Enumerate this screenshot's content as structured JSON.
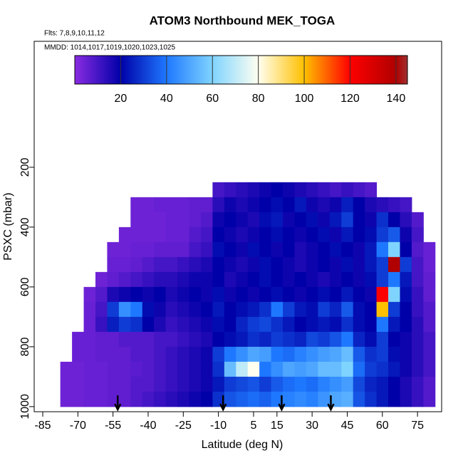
{
  "chart_data": {
    "type": "heatmap",
    "title": "ATOM3 Northbound MEK_TOGA",
    "annotations": [
      "Flts: 7,8,9,10,11,12",
      "MMDD: 1014,1017,1019,1020,1023,1025"
    ],
    "xlabel": "Latitude (deg N)",
    "ylabel": "PSXC (mbar)",
    "xlim": [
      -88.65,
      85.3
    ],
    "xticks": [
      -85,
      -70,
      -55,
      -40,
      -25,
      -10,
      5,
      15,
      30,
      45,
      60,
      75
    ],
    "ylim": [
      1017,
      -221
    ],
    "yticks": [
      200,
      400,
      600,
      800,
      1000
    ],
    "clim": [
      0,
      145
    ],
    "cticks": [
      20,
      40,
      60,
      80,
      100,
      120,
      140
    ],
    "colormap": [
      [
        0,
        "#8a2be2"
      ],
      [
        20,
        "#0000a8"
      ],
      [
        40,
        "#1e78ff"
      ],
      [
        60,
        "#7fd4ff"
      ],
      [
        80,
        "#fffff0"
      ],
      [
        100,
        "#ffc000"
      ],
      [
        120,
        "#ff0000"
      ],
      [
        140,
        "#b00000"
      ],
      [
        145,
        "#a03030"
      ]
    ],
    "arrows": [
      -53,
      -8,
      17,
      38
    ],
    "xbins": [
      -77.5,
      -72.5,
      -67.5,
      -62.5,
      -57.5,
      -52.5,
      -47.5,
      -42.5,
      -37.5,
      -32.5,
      -27.5,
      -22.5,
      -17.5,
      -12.5,
      -7.5,
      -2.5,
      2.5,
      7.5,
      12.5,
      17.5,
      22.5,
      27.5,
      32.5,
      37.5,
      42.5,
      47.5,
      52.5,
      57.5,
      62.5,
      67.5,
      72.5,
      77.5,
      82.5
    ],
    "ybins": [
      250,
      300,
      350,
      400,
      450,
      500,
      550,
      600,
      650,
      700,
      750,
      800,
      850,
      900,
      950,
      1000
    ],
    "z": [
      [
        null,
        null,
        null,
        null,
        null,
        null,
        null,
        null,
        null,
        null,
        null,
        null,
        null,
        10,
        12,
        14,
        16,
        18,
        20,
        18,
        16,
        14,
        12,
        10,
        12,
        10,
        8,
        null,
        null,
        null,
        null,
        null
      ],
      [
        null,
        null,
        null,
        null,
        null,
        null,
        4,
        4,
        5,
        5,
        5,
        6,
        6,
        14,
        18,
        16,
        18,
        20,
        22,
        20,
        24,
        18,
        16,
        18,
        25,
        20,
        16,
        14,
        12,
        10,
        null,
        null
      ],
      [
        null,
        null,
        null,
        null,
        null,
        null,
        4,
        4,
        4,
        5,
        5,
        6,
        8,
        18,
        20,
        18,
        16,
        22,
        24,
        18,
        20,
        22,
        18,
        24,
        30,
        20,
        18,
        28,
        20,
        14,
        8,
        null
      ],
      [
        null,
        null,
        null,
        null,
        null,
        4,
        4,
        4,
        4,
        5,
        5,
        8,
        10,
        20,
        18,
        16,
        18,
        20,
        22,
        20,
        18,
        20,
        22,
        18,
        24,
        20,
        22,
        30,
        35,
        18,
        10,
        null
      ],
      [
        null,
        null,
        null,
        null,
        4,
        4,
        5,
        5,
        6,
        6,
        6,
        10,
        12,
        22,
        20,
        18,
        22,
        20,
        18,
        20,
        16,
        18,
        20,
        22,
        20,
        18,
        24,
        40,
        60,
        20,
        8,
        5
      ],
      [
        null,
        null,
        null,
        null,
        5,
        5,
        6,
        8,
        10,
        10,
        12,
        14,
        16,
        20,
        18,
        16,
        18,
        22,
        20,
        18,
        16,
        18,
        20,
        18,
        22,
        18,
        24,
        30,
        140,
        30,
        10,
        5
      ],
      [
        null,
        null,
        null,
        4,
        6,
        8,
        10,
        12,
        14,
        14,
        16,
        18,
        18,
        20,
        16,
        18,
        20,
        22,
        20,
        18,
        20,
        18,
        16,
        18,
        20,
        18,
        22,
        30,
        40,
        24,
        10,
        6
      ],
      [
        null,
        null,
        4,
        8,
        16,
        18,
        20,
        18,
        20,
        16,
        18,
        20,
        18,
        22,
        18,
        20,
        18,
        20,
        22,
        20,
        18,
        20,
        22,
        20,
        24,
        20,
        18,
        120,
        60,
        22,
        12,
        6
      ],
      [
        null,
        null,
        5,
        10,
        30,
        45,
        40,
        22,
        18,
        14,
        16,
        18,
        20,
        24,
        20,
        22,
        24,
        28,
        40,
        30,
        24,
        22,
        30,
        26,
        35,
        22,
        20,
        100,
        30,
        20,
        12,
        8
      ],
      [
        null,
        null,
        5,
        12,
        25,
        30,
        28,
        20,
        16,
        12,
        14,
        16,
        18,
        22,
        20,
        26,
        30,
        32,
        28,
        24,
        20,
        22,
        24,
        22,
        28,
        22,
        20,
        40,
        24,
        20,
        14,
        8
      ],
      [
        null,
        5,
        5,
        6,
        6,
        8,
        8,
        8,
        10,
        10,
        12,
        14,
        16,
        20,
        22,
        24,
        28,
        26,
        30,
        28,
        26,
        32,
        30,
        34,
        40,
        26,
        22,
        30,
        20,
        18,
        14,
        10
      ],
      [
        null,
        5,
        5,
        6,
        6,
        6,
        8,
        8,
        10,
        12,
        14,
        16,
        18,
        30,
        40,
        45,
        50,
        48,
        40,
        38,
        42,
        45,
        48,
        50,
        55,
        35,
        28,
        30,
        22,
        18,
        14,
        10
      ],
      [
        4,
        4,
        5,
        5,
        6,
        6,
        7,
        8,
        10,
        12,
        14,
        16,
        18,
        28,
        55,
        70,
        80,
        40,
        45,
        50,
        48,
        50,
        55,
        55,
        60,
        38,
        30,
        28,
        24,
        18,
        14,
        10
      ],
      [
        4,
        4,
        5,
        5,
        6,
        6,
        8,
        8,
        10,
        12,
        14,
        16,
        18,
        24,
        30,
        32,
        34,
        30,
        35,
        38,
        40,
        38,
        42,
        45,
        48,
        32,
        26,
        24,
        20,
        16,
        12,
        8
      ],
      [
        4,
        4,
        5,
        5,
        6,
        6,
        8,
        10,
        12,
        14,
        16,
        18,
        20,
        28,
        34,
        36,
        38,
        36,
        40,
        42,
        44,
        42,
        46,
        50,
        52,
        34,
        28,
        24,
        20,
        16,
        12,
        8
      ]
    ]
  }
}
